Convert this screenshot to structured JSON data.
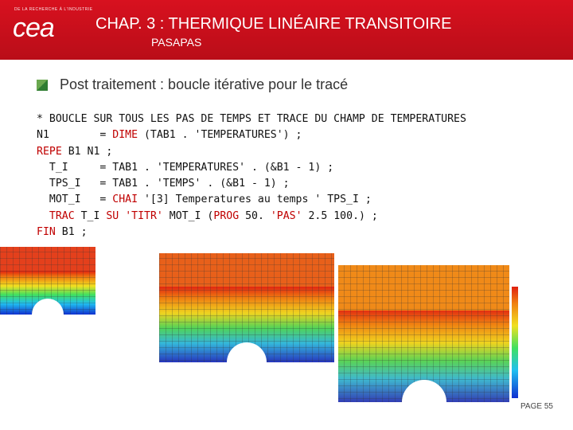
{
  "header": {
    "logo": "cea",
    "tagline": "DE LA RECHERCHE À L'INDUSTRIE",
    "title": "CHAP. 3 : THERMIQUE LINÉAIRE TRANSITOIRE",
    "subtitle": "PASAPAS"
  },
  "section": {
    "heading": "Post traitement : boucle itérative pour le tracé"
  },
  "code": {
    "keyword_color": "#c00000",
    "lines": [
      [
        "* BOUCLE SUR TOUS LES PAS DE TEMPS ET TRACE DU CHAMP DE TEMPERATURES"
      ],
      [
        "N1        = ",
        {
          "text": "DIME"
        },
        " (TAB1 . 'TEMPERATURES') ;"
      ],
      [
        {
          "text": "REPE"
        },
        " B1 N1 ;"
      ],
      [
        "  T_I     = TAB1 . 'TEMPERATURES' . (&B1 - 1) ;"
      ],
      [
        "  TPS_I   = TAB1 . 'TEMPS' . (&B1 - 1) ;"
      ],
      [
        "  MOT_I   = ",
        {
          "text": "CHAI"
        },
        " '[3] Temperatures au temps ' TPS_I ;"
      ],
      [
        "  ",
        {
          "text": "TRAC"
        },
        " T_I ",
        {
          "text": "SU"
        },
        " ",
        {
          "text": "'TITR'"
        },
        " MOT_I (",
        {
          "text": "PROG"
        },
        " 50. ",
        {
          "text": "'PAS'"
        },
        " 2.5 100.) ;"
      ],
      [
        {
          "text": "FIN"
        },
        " B1 ;"
      ]
    ]
  },
  "footer": {
    "page": "PAGE 55"
  }
}
